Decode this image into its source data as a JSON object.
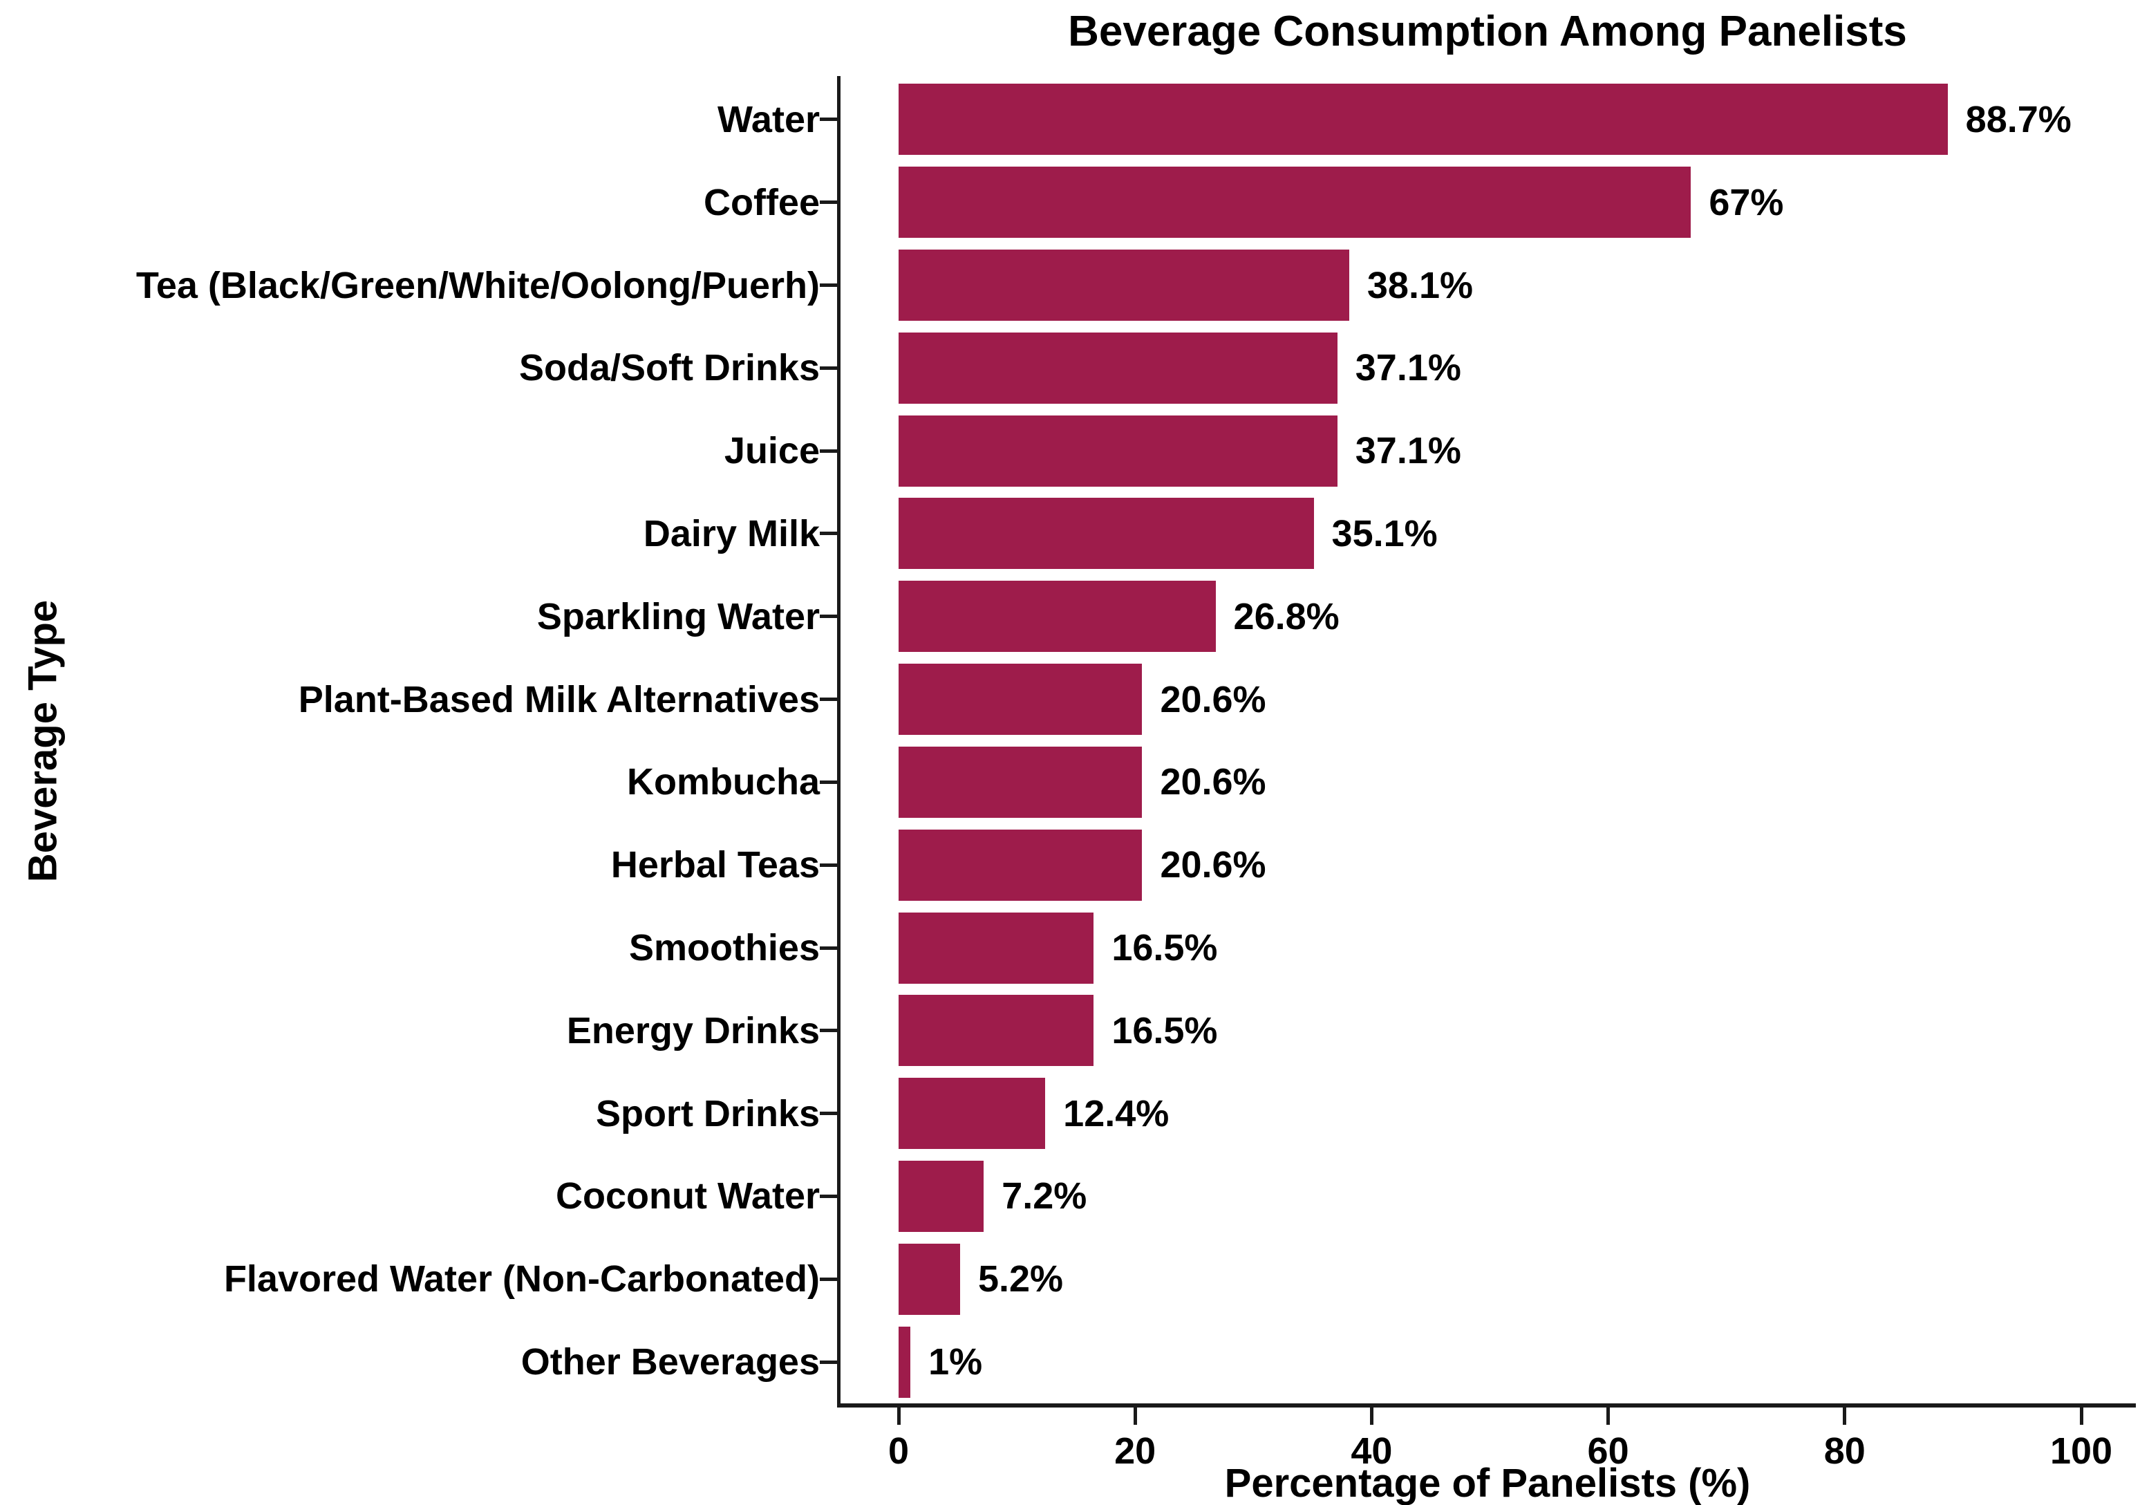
{
  "chart_data": {
    "type": "bar",
    "orientation": "horizontal",
    "title": "Beverage Consumption Among Panelists",
    "xlabel": "Percentage of Panelists (%)",
    "ylabel": "Beverage Type",
    "categories": [
      "Water",
      "Coffee",
      "Tea (Black/Green/White/Oolong/Puerh)",
      "Soda/Soft Drinks",
      "Juice",
      "Dairy Milk",
      "Sparkling Water",
      "Plant-Based Milk Alternatives",
      "Kombucha",
      "Herbal Teas",
      "Smoothies",
      "Energy Drinks",
      "Sport Drinks",
      "Coconut Water",
      "Flavored Water (Non-Carbonated)",
      "Other Beverages"
    ],
    "values": [
      88.7,
      67,
      38.1,
      37.1,
      37.1,
      35.1,
      26.8,
      20.6,
      20.6,
      20.6,
      16.5,
      16.5,
      12.4,
      7.2,
      5.2,
      1
    ],
    "value_labels": [
      "88.7%",
      "67%",
      "38.1%",
      "37.1%",
      "37.1%",
      "35.1%",
      "26.8%",
      "20.6%",
      "20.6%",
      "20.6%",
      "16.5%",
      "16.5%",
      "12.4%",
      "7.2%",
      "5.2%",
      "1%"
    ],
    "x_ticks": [
      0,
      20,
      40,
      60,
      80,
      100
    ],
    "xlim": [
      0,
      104
    ],
    "grid": false,
    "legend": false,
    "bar_color": "#9E1C4B",
    "axis_color": "#1A1A1A",
    "text_color": "#000000",
    "background_color": "#FFFFFF"
  }
}
